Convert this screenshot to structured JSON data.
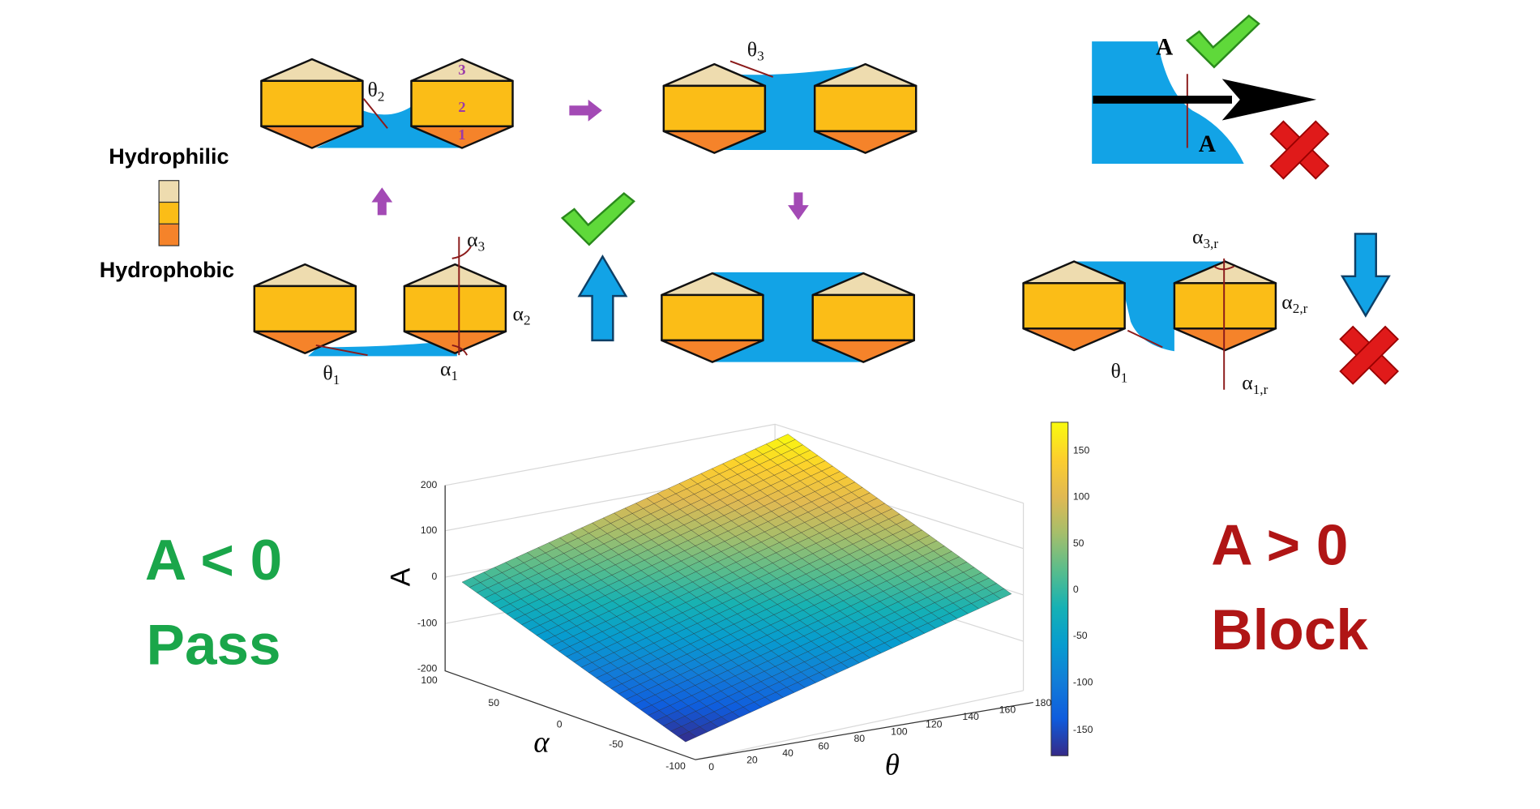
{
  "legend": {
    "hydrophilic": "Hydrophilic",
    "hydrophobic": "Hydrophobic"
  },
  "particle_numbers": [
    "3",
    "2",
    "1"
  ],
  "angle_labels": {
    "theta_2": {
      "symbol": "θ",
      "subscript": "2"
    },
    "theta_3": {
      "symbol": "θ",
      "subscript": "3"
    },
    "theta_1": {
      "symbol": "θ",
      "subscript": "1"
    },
    "alpha_1": {
      "symbol": "α",
      "subscript": "1"
    },
    "alpha_2": {
      "symbol": "α",
      "subscript": "2"
    },
    "alpha_3": {
      "symbol": "α",
      "subscript": "3"
    },
    "theta_1_r": {
      "symbol": "θ",
      "subscript": "1"
    },
    "alpha_1_r": {
      "symbol": "α",
      "subscript": "1,r"
    },
    "alpha_2_r": {
      "symbol": "α",
      "subscript": "2,r"
    },
    "alpha_3_r": {
      "symbol": "α",
      "subscript": "3,r"
    }
  },
  "inset": {
    "label_top": "A",
    "label_bottom": "A"
  },
  "conditions": {
    "pass": {
      "inequality": "A < 0",
      "label": "Pass"
    },
    "block": {
      "inequality": "A > 0",
      "label": "Block"
    }
  },
  "plot": {
    "z_label": "A",
    "x_label": "α",
    "y_label": "θ",
    "z_ticks": [
      200,
      100,
      0,
      -100,
      -200
    ],
    "alpha_ticks": [
      100,
      50,
      0,
      -50,
      -100
    ],
    "theta_ticks": [
      0,
      20,
      40,
      60,
      80,
      100,
      120,
      140,
      160,
      180
    ],
    "colorbar_ticks": [
      150,
      100,
      50,
      0,
      -50,
      -100,
      -150
    ]
  }
}
